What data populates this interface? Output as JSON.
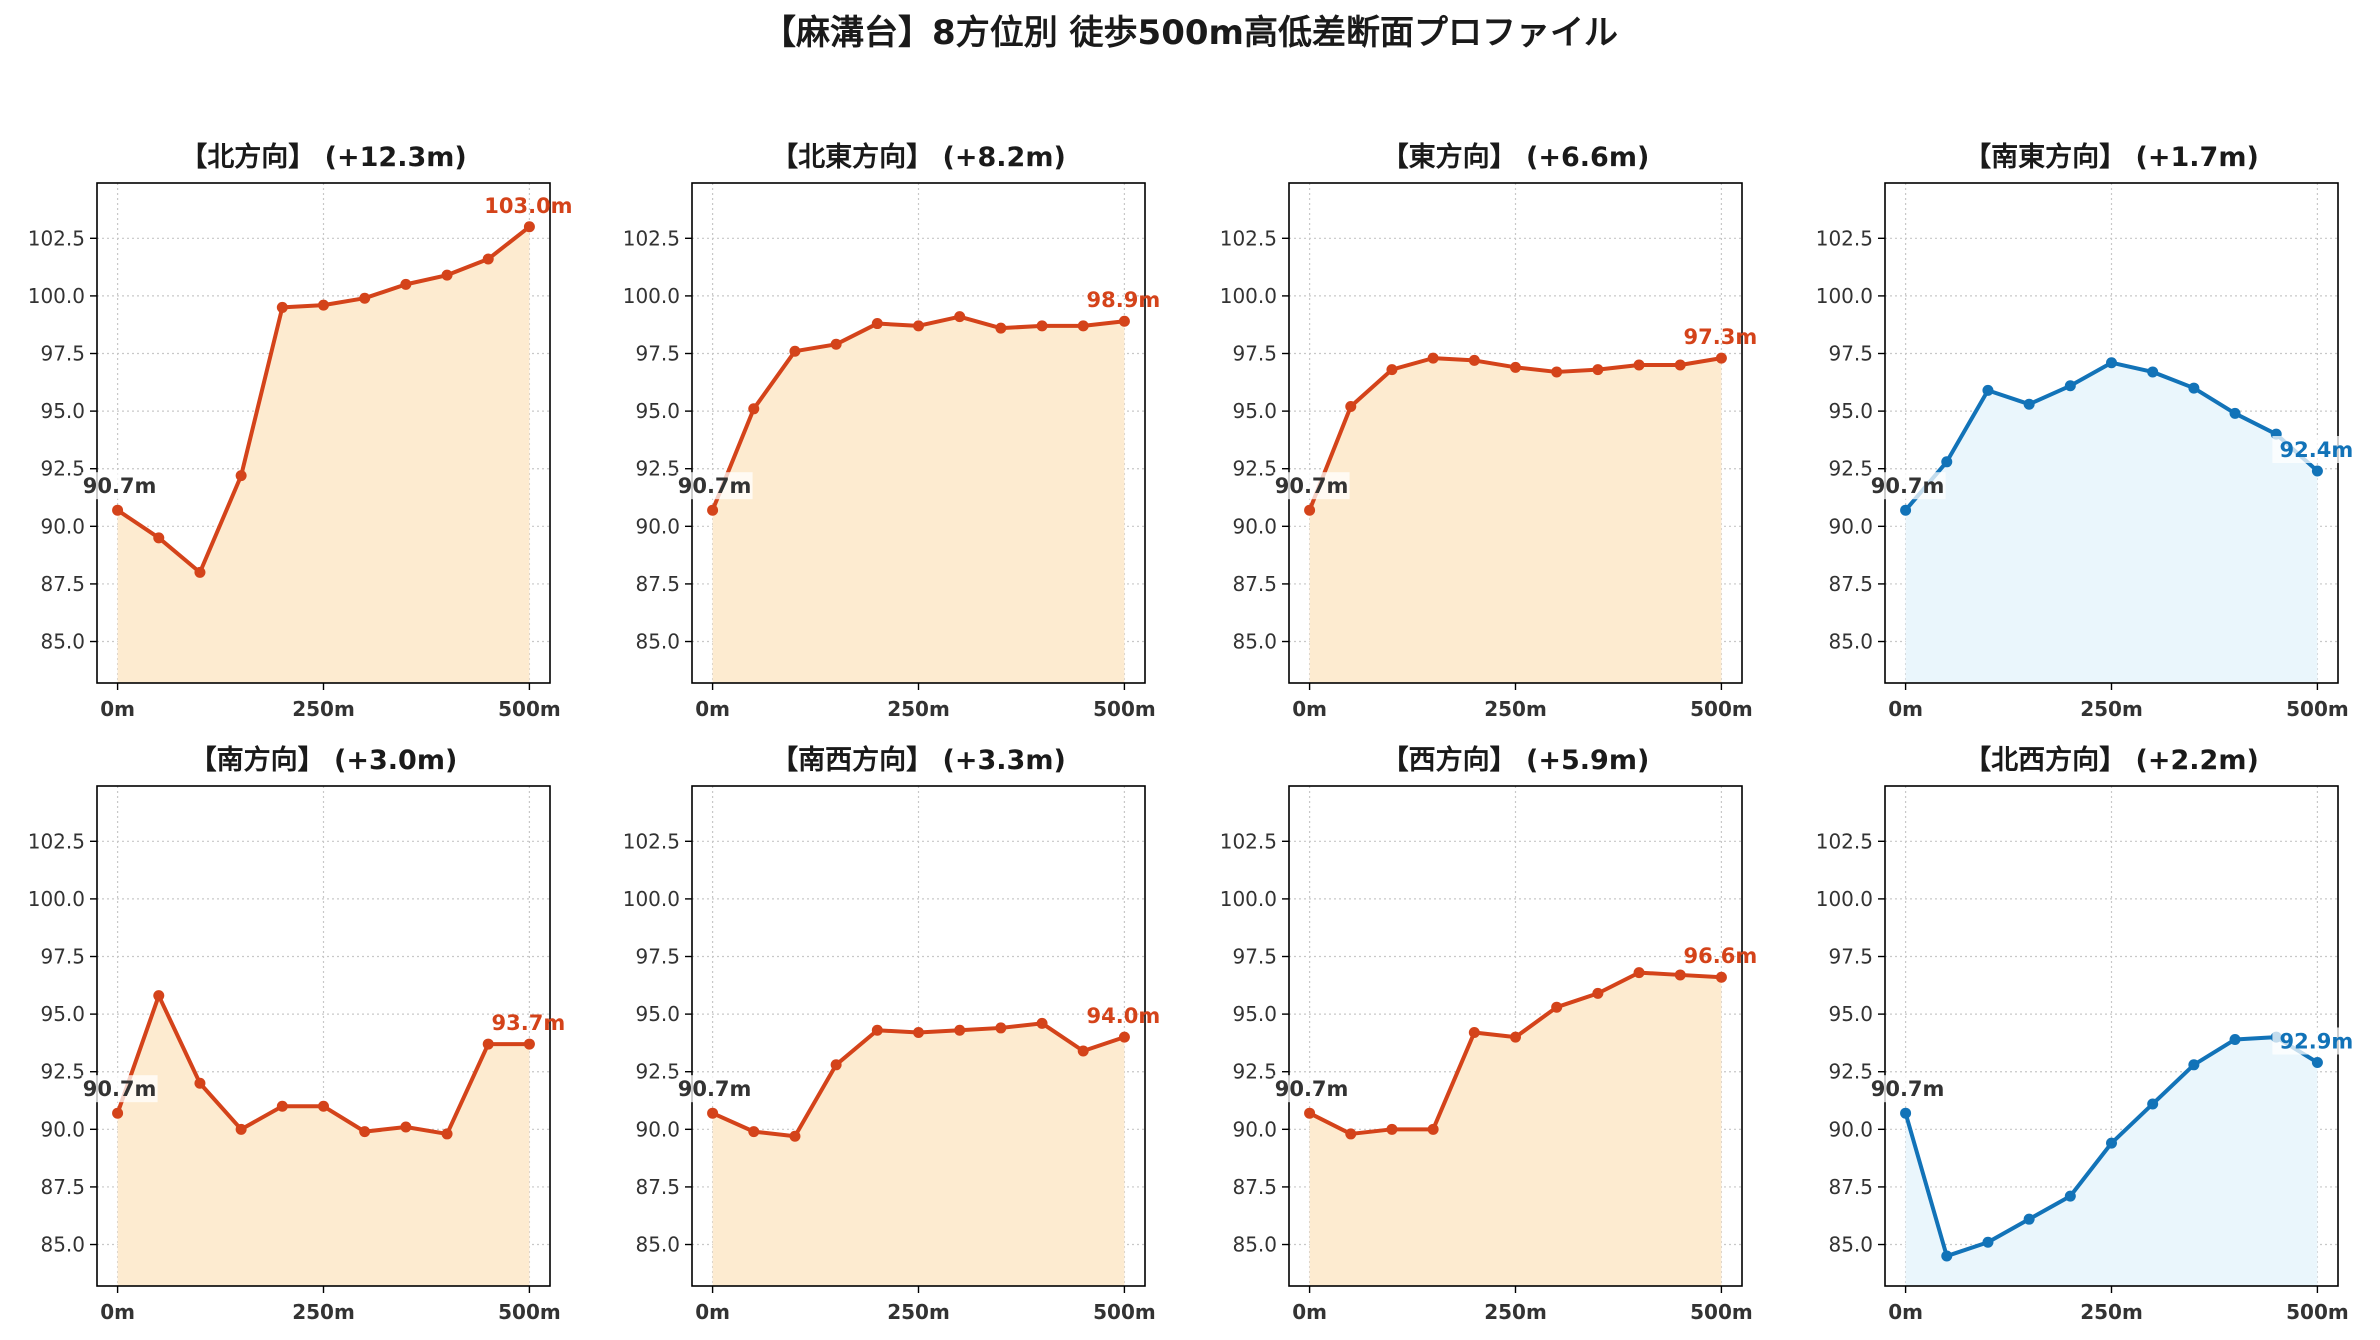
{
  "title": "【麻溝台】8方位別 徒歩500m高低差断面プロファイル",
  "colors": {
    "up_line": "#d4431a",
    "up_fill": "#fdebd0",
    "down_line": "#1273b8",
    "down_fill": "#eaf6fc",
    "start_label": "#333333"
  },
  "chart_data": [
    {
      "type": "line",
      "title": "【北方向】 (+12.3m)",
      "trend": "up",
      "x": [
        0,
        50,
        100,
        150,
        200,
        250,
        300,
        350,
        400,
        450,
        500
      ],
      "values": [
        90.7,
        89.5,
        88.0,
        92.2,
        99.5,
        99.6,
        99.9,
        100.5,
        100.9,
        101.6,
        103.0
      ],
      "start_label": "90.7m",
      "end_label": "103.0m",
      "xticks": [
        "0m",
        "250m",
        "500m"
      ],
      "yticks": [
        "85.0",
        "87.5",
        "90.0",
        "92.5",
        "95.0",
        "97.5",
        "100.0",
        "102.5"
      ],
      "ylim": [
        83.2,
        104.9
      ],
      "xlim": [
        -25,
        525
      ],
      "grid": true
    },
    {
      "type": "line",
      "title": "【北東方向】 (+8.2m)",
      "trend": "up",
      "x": [
        0,
        50,
        100,
        150,
        200,
        250,
        300,
        350,
        400,
        450,
        500
      ],
      "values": [
        90.7,
        95.1,
        97.6,
        97.9,
        98.8,
        98.7,
        99.1,
        98.6,
        98.7,
        98.7,
        98.9
      ],
      "start_label": "90.7m",
      "end_label": "98.9m",
      "xticks": [
        "0m",
        "250m",
        "500m"
      ],
      "yticks": [
        "85.0",
        "87.5",
        "90.0",
        "92.5",
        "95.0",
        "97.5",
        "100.0",
        "102.5"
      ],
      "ylim": [
        83.2,
        104.9
      ],
      "xlim": [
        -25,
        525
      ],
      "grid": true
    },
    {
      "type": "line",
      "title": "【東方向】 (+6.6m)",
      "trend": "up",
      "x": [
        0,
        50,
        100,
        150,
        200,
        250,
        300,
        350,
        400,
        450,
        500
      ],
      "values": [
        90.7,
        95.2,
        96.8,
        97.3,
        97.2,
        96.9,
        96.7,
        96.8,
        97.0,
        97.0,
        97.3
      ],
      "start_label": "90.7m",
      "end_label": "97.3m",
      "xticks": [
        "0m",
        "250m",
        "500m"
      ],
      "yticks": [
        "85.0",
        "87.5",
        "90.0",
        "92.5",
        "95.0",
        "97.5",
        "100.0",
        "102.5"
      ],
      "ylim": [
        83.2,
        104.9
      ],
      "xlim": [
        -25,
        525
      ],
      "grid": true
    },
    {
      "type": "line",
      "title": "【南東方向】 (+1.7m)",
      "trend": "down",
      "x": [
        0,
        50,
        100,
        150,
        200,
        250,
        300,
        350,
        400,
        450,
        500
      ],
      "values": [
        90.7,
        92.8,
        95.9,
        95.3,
        96.1,
        97.1,
        96.7,
        96.0,
        94.9,
        94.0,
        92.4
      ],
      "start_label": "90.7m",
      "end_label": "92.4m",
      "xticks": [
        "0m",
        "250m",
        "500m"
      ],
      "yticks": [
        "85.0",
        "87.5",
        "90.0",
        "92.5",
        "95.0",
        "97.5",
        "100.0",
        "102.5"
      ],
      "ylim": [
        83.2,
        104.9
      ],
      "xlim": [
        -25,
        525
      ],
      "grid": true
    },
    {
      "type": "line",
      "title": "【南方向】 (+3.0m)",
      "trend": "up",
      "x": [
        0,
        50,
        100,
        150,
        200,
        250,
        300,
        350,
        400,
        450,
        500
      ],
      "values": [
        90.7,
        95.8,
        92.0,
        90.0,
        91.0,
        91.0,
        89.9,
        90.1,
        89.8,
        93.7,
        93.7
      ],
      "start_label": "90.7m",
      "end_label": "93.7m",
      "xticks": [
        "0m",
        "250m",
        "500m"
      ],
      "yticks": [
        "85.0",
        "87.5",
        "90.0",
        "92.5",
        "95.0",
        "97.5",
        "100.0",
        "102.5"
      ],
      "ylim": [
        83.2,
        104.9
      ],
      "xlim": [
        -25,
        525
      ],
      "grid": true
    },
    {
      "type": "line",
      "title": "【南西方向】 (+3.3m)",
      "trend": "up",
      "x": [
        0,
        50,
        100,
        150,
        200,
        250,
        300,
        350,
        400,
        450,
        500
      ],
      "values": [
        90.7,
        89.9,
        89.7,
        92.8,
        94.3,
        94.2,
        94.3,
        94.4,
        94.6,
        93.4,
        94.0
      ],
      "start_label": "90.7m",
      "end_label": "94.0m",
      "xticks": [
        "0m",
        "250m",
        "500m"
      ],
      "yticks": [
        "85.0",
        "87.5",
        "90.0",
        "92.5",
        "95.0",
        "97.5",
        "100.0",
        "102.5"
      ],
      "ylim": [
        83.2,
        104.9
      ],
      "xlim": [
        -25,
        525
      ],
      "grid": true
    },
    {
      "type": "line",
      "title": "【西方向】 (+5.9m)",
      "trend": "up",
      "x": [
        0,
        50,
        100,
        150,
        200,
        250,
        300,
        350,
        400,
        450,
        500
      ],
      "values": [
        90.7,
        89.8,
        90.0,
        90.0,
        94.2,
        94.0,
        95.3,
        95.9,
        96.8,
        96.7,
        96.6
      ],
      "start_label": "90.7m",
      "end_label": "96.6m",
      "xticks": [
        "0m",
        "250m",
        "500m"
      ],
      "yticks": [
        "85.0",
        "87.5",
        "90.0",
        "92.5",
        "95.0",
        "97.5",
        "100.0",
        "102.5"
      ],
      "ylim": [
        83.2,
        104.9
      ],
      "xlim": [
        -25,
        525
      ],
      "grid": true
    },
    {
      "type": "line",
      "title": "【北西方向】 (+2.2m)",
      "trend": "down",
      "x": [
        0,
        50,
        100,
        150,
        200,
        250,
        300,
        350,
        400,
        450,
        500
      ],
      "values": [
        90.7,
        84.5,
        85.1,
        86.1,
        87.1,
        89.4,
        91.1,
        92.8,
        93.9,
        94.0,
        92.9
      ],
      "start_label": "90.7m",
      "end_label": "92.9m",
      "xticks": [
        "0m",
        "250m",
        "500m"
      ],
      "yticks": [
        "85.0",
        "87.5",
        "90.0",
        "92.5",
        "95.0",
        "97.5",
        "100.0",
        "102.5"
      ],
      "ylim": [
        83.2,
        104.9
      ],
      "xlim": [
        -25,
        525
      ],
      "grid": true
    }
  ]
}
